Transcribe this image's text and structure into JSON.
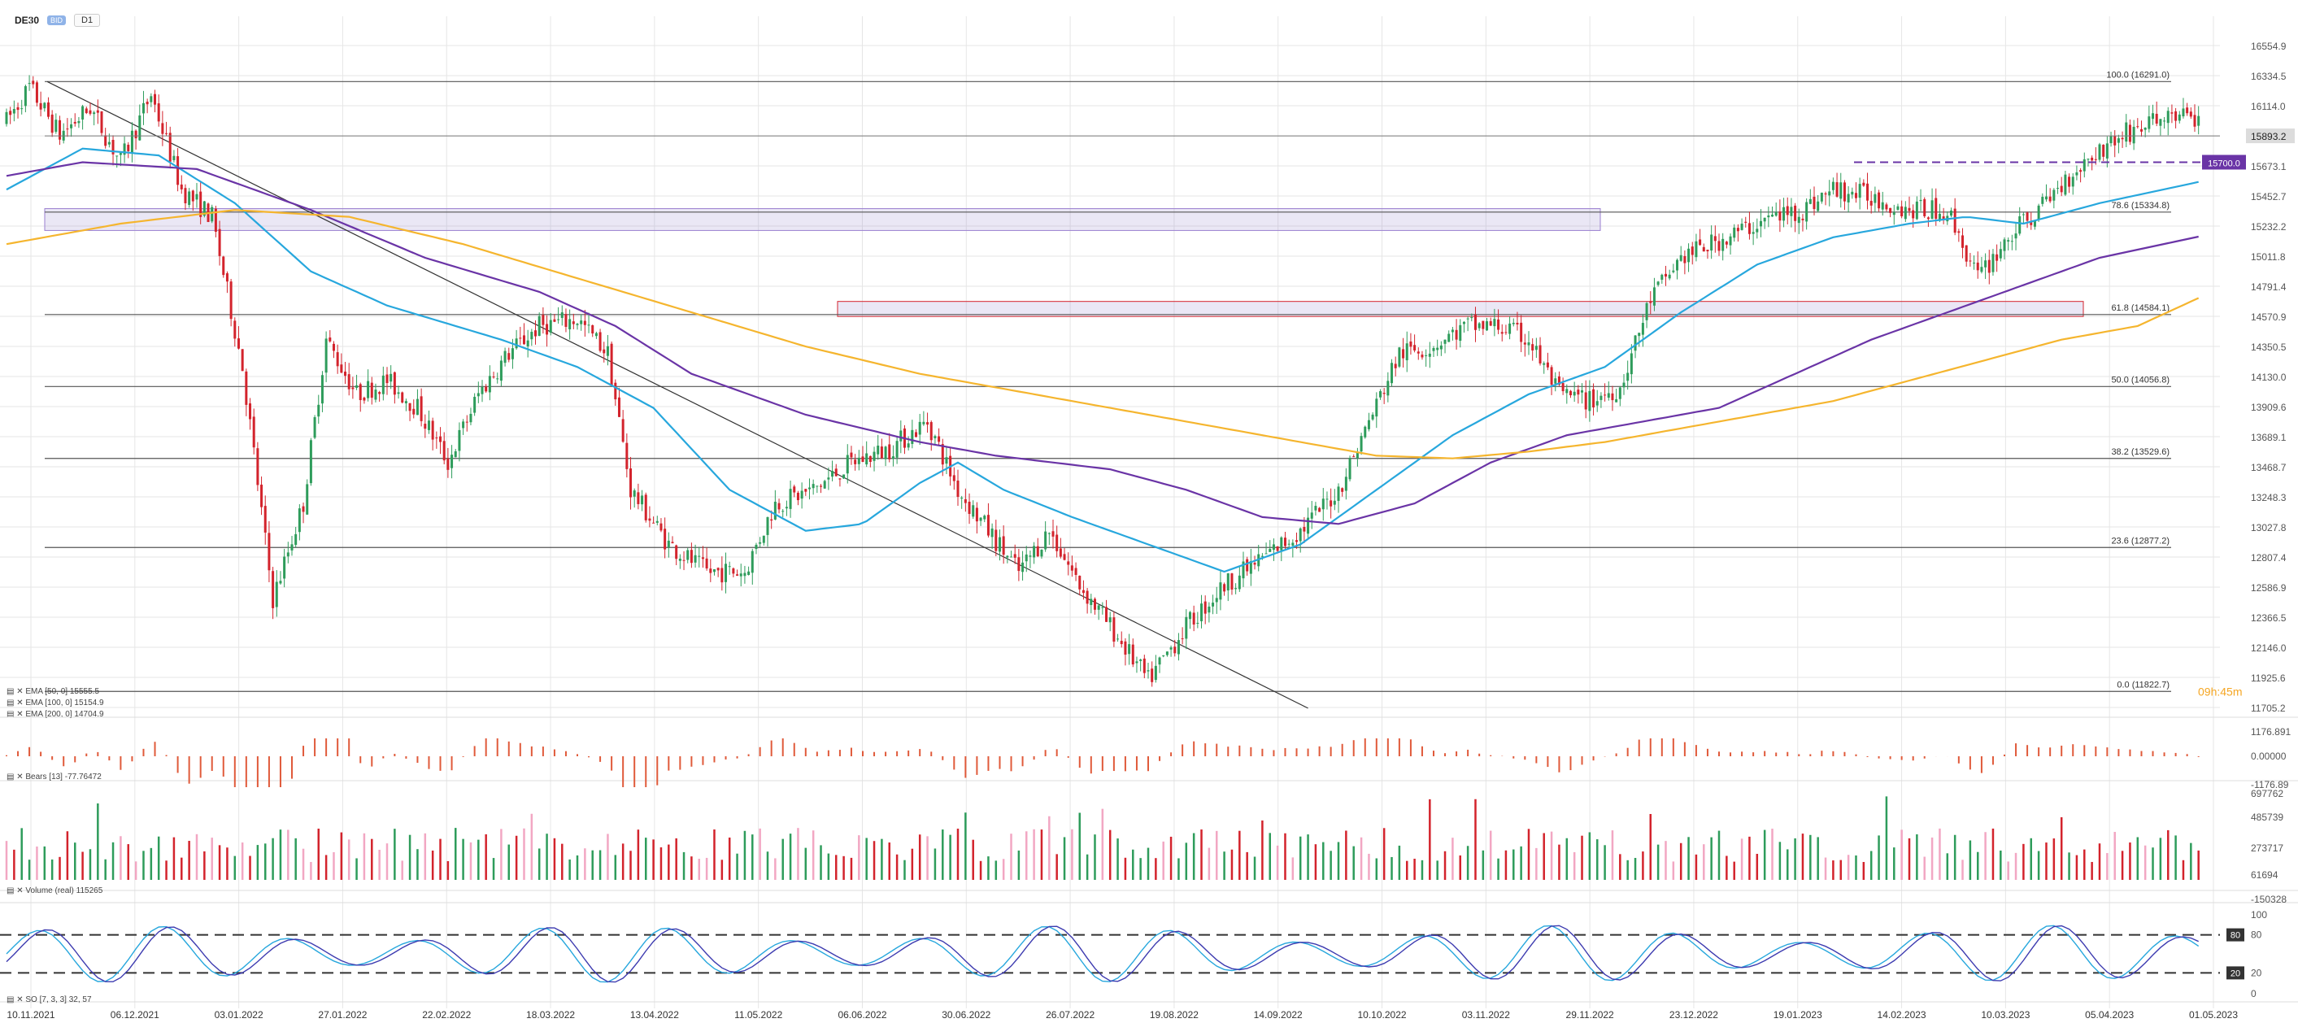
{
  "toolbar": {
    "symbol": "DE30",
    "badge": "BID",
    "timeframe": "D1"
  },
  "colors": {
    "up": "#2e9c5b",
    "down": "#d3232c",
    "ema50": "#27a7dd",
    "ema100": "#6a34a6",
    "ema200": "#f5b52e",
    "grid": "#e6e6e6",
    "fib": "#555555"
  },
  "chart_data": {
    "type": "candlestick",
    "symbol": "DE30",
    "x_ticks": [
      "10.11.2021",
      "06.12.2021",
      "03.01.2022",
      "27.01.2022",
      "22.02.2022",
      "18.03.2022",
      "13.04.2022",
      "11.05.2022",
      "06.06.2022",
      "30.06.2022",
      "26.07.2022",
      "19.08.2022",
      "14.09.2022",
      "10.10.2022",
      "03.11.2022",
      "29.11.2022",
      "23.12.2022",
      "19.01.2023",
      "14.02.2023",
      "10.03.2023",
      "05.04.2023",
      "01.05.2023"
    ],
    "y_ticks": [
      "16554.9",
      "16334.5",
      "16114.0",
      "15893.2",
      "15673.1",
      "15452.7",
      "15232.2",
      "15011.8",
      "14791.4",
      "14570.9",
      "14350.5",
      "14130.0",
      "13909.6",
      "13689.1",
      "13468.7",
      "13248.3",
      "13027.8",
      "12807.4",
      "12586.9",
      "12366.5",
      "12146.0",
      "11925.6",
      "11705.2"
    ],
    "ylim": [
      11705.2,
      16554.9
    ],
    "current_price": "15893.2",
    "price_line": "15700.0",
    "countdown": "09h:45m",
    "fibonacci": [
      {
        "label": "100.0 (16291.0)",
        "value": 16291.0
      },
      {
        "label": "78.6 (15334.8)",
        "value": 15334.8
      },
      {
        "label": "61.8 (14584.1)",
        "value": 14584.1
      },
      {
        "label": "50.0 (14056.8)",
        "value": 14056.8
      },
      {
        "label": "38.2 (13529.6)",
        "value": 13529.6
      },
      {
        "label": "23.6 (12877.2)",
        "value": 12877.2
      },
      {
        "label": "0.0 (11822.7)",
        "value": 11822.7
      }
    ],
    "zones": [
      {
        "from": 15200,
        "to": 15360
      },
      {
        "from": 14570,
        "to": 14680
      }
    ],
    "trendline": {
      "from": [
        0,
        16291
      ],
      "to": [
        342,
        11700
      ]
    },
    "anchors": [
      [
        0,
        16000
      ],
      [
        6,
        16250
      ],
      [
        14,
        15900
      ],
      [
        22,
        16100
      ],
      [
        30,
        15700
      ],
      [
        38,
        16200
      ],
      [
        46,
        15500
      ],
      [
        54,
        15300
      ],
      [
        62,
        14200
      ],
      [
        70,
        12500
      ],
      [
        78,
        13200
      ],
      [
        84,
        14400
      ],
      [
        92,
        14000
      ],
      [
        100,
        14100
      ],
      [
        108,
        13900
      ],
      [
        116,
        13500
      ],
      [
        124,
        14000
      ],
      [
        132,
        14300
      ],
      [
        140,
        14500
      ],
      [
        150,
        14550
      ],
      [
        158,
        14300
      ],
      [
        164,
        13300
      ],
      [
        174,
        12900
      ],
      [
        184,
        12700
      ],
      [
        194,
        12700
      ],
      [
        202,
        13200
      ],
      [
        212,
        13300
      ],
      [
        222,
        13500
      ],
      [
        232,
        13600
      ],
      [
        242,
        13800
      ],
      [
        250,
        13300
      ],
      [
        258,
        13000
      ],
      [
        266,
        12700
      ],
      [
        274,
        13000
      ],
      [
        282,
        12600
      ],
      [
        290,
        12300
      ],
      [
        300,
        11900
      ],
      [
        310,
        12300
      ],
      [
        320,
        12600
      ],
      [
        330,
        12800
      ],
      [
        340,
        13000
      ],
      [
        350,
        13300
      ],
      [
        358,
        13800
      ],
      [
        366,
        14300
      ],
      [
        374,
        14350
      ],
      [
        384,
        14500
      ],
      [
        392,
        14500
      ],
      [
        400,
        14400
      ],
      [
        408,
        14000
      ],
      [
        416,
        13950
      ],
      [
        424,
        14050
      ],
      [
        432,
        14700
      ],
      [
        440,
        15000
      ],
      [
        448,
        15100
      ],
      [
        456,
        15200
      ],
      [
        464,
        15300
      ],
      [
        472,
        15350
      ],
      [
        480,
        15500
      ],
      [
        490,
        15450
      ],
      [
        500,
        15350
      ],
      [
        510,
        15350
      ],
      [
        518,
        14850
      ],
      [
        526,
        15150
      ],
      [
        534,
        15350
      ],
      [
        542,
        15600
      ],
      [
        548,
        15750
      ],
      [
        556,
        15900
      ],
      [
        564,
        16000
      ],
      [
        570,
        16050
      ],
      [
        576,
        16000
      ]
    ],
    "ema_anchors": {
      "ema50": [
        [
          0,
          15500
        ],
        [
          20,
          15800
        ],
        [
          40,
          15750
        ],
        [
          60,
          15400
        ],
        [
          80,
          14900
        ],
        [
          100,
          14650
        ],
        [
          130,
          14400
        ],
        [
          150,
          14200
        ],
        [
          170,
          13900
        ],
        [
          190,
          13300
        ],
        [
          210,
          13000
        ],
        [
          225,
          13050
        ],
        [
          240,
          13350
        ],
        [
          250,
          13500
        ],
        [
          262,
          13300
        ],
        [
          280,
          13100
        ],
        [
          300,
          12900
        ],
        [
          320,
          12700
        ],
        [
          340,
          12900
        ],
        [
          360,
          13300
        ],
        [
          380,
          13700
        ],
        [
          400,
          14000
        ],
        [
          420,
          14200
        ],
        [
          440,
          14600
        ],
        [
          460,
          14950
        ],
        [
          480,
          15150
        ],
        [
          500,
          15250
        ],
        [
          515,
          15300
        ],
        [
          530,
          15250
        ],
        [
          550,
          15400
        ],
        [
          576,
          15555.5
        ]
      ],
      "ema100": [
        [
          0,
          15600
        ],
        [
          20,
          15700
        ],
        [
          50,
          15650
        ],
        [
          80,
          15350
        ],
        [
          110,
          15000
        ],
        [
          140,
          14750
        ],
        [
          160,
          14500
        ],
        [
          180,
          14150
        ],
        [
          210,
          13850
        ],
        [
          240,
          13650
        ],
        [
          260,
          13550
        ],
        [
          290,
          13450
        ],
        [
          310,
          13300
        ],
        [
          330,
          13100
        ],
        [
          350,
          13050
        ],
        [
          370,
          13200
        ],
        [
          390,
          13500
        ],
        [
          410,
          13700
        ],
        [
          430,
          13800
        ],
        [
          450,
          13900
        ],
        [
          470,
          14150
        ],
        [
          490,
          14400
        ],
        [
          510,
          14600
        ],
        [
          530,
          14800
        ],
        [
          550,
          15000
        ],
        [
          576,
          15154.9
        ]
      ],
      "ema200": [
        [
          0,
          15100
        ],
        [
          30,
          15250
        ],
        [
          60,
          15350
        ],
        [
          90,
          15300
        ],
        [
          120,
          15100
        ],
        [
          150,
          14850
        ],
        [
          180,
          14600
        ],
        [
          210,
          14350
        ],
        [
          240,
          14150
        ],
        [
          270,
          14000
        ],
        [
          300,
          13850
        ],
        [
          330,
          13700
        ],
        [
          360,
          13550
        ],
        [
          380,
          13530
        ],
        [
          400,
          13580
        ],
        [
          420,
          13650
        ],
        [
          450,
          13800
        ],
        [
          480,
          13950
        ],
        [
          500,
          14100
        ],
        [
          520,
          14250
        ],
        [
          540,
          14400
        ],
        [
          560,
          14500
        ],
        [
          576,
          14704.9
        ]
      ]
    },
    "legend": [
      "EMA [50, 0] 15555.5",
      "EMA [100, 0] 15154.9",
      "EMA [200, 0] 14704.9"
    ],
    "bears_panel": {
      "label": "Bears [13] -77.76472",
      "y_ticks": [
        "1176.891",
        "0.00000",
        "-1176.89"
      ]
    },
    "volume_panel": {
      "label": "Volume (real) 115265",
      "y_ticks": [
        "697762",
        "485739",
        "273717",
        "61694",
        "-150328"
      ]
    },
    "so_panel": {
      "label": "SO [7, 3, 3] 32, 57",
      "y_ticks": [
        "100",
        "80",
        "20",
        "0"
      ],
      "levels": [
        "80",
        "20"
      ]
    }
  }
}
